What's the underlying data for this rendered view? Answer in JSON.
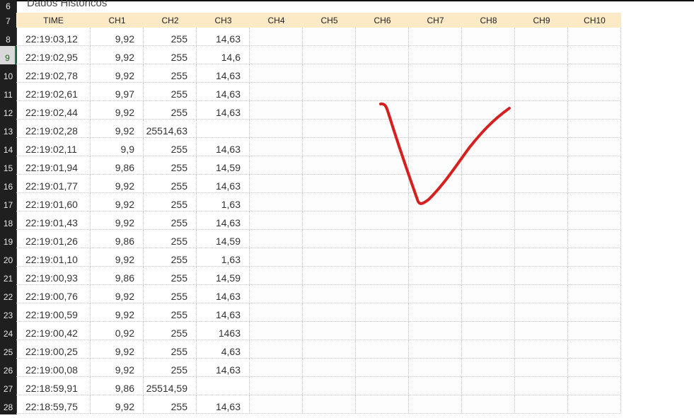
{
  "sheet": {
    "title": "Dados Históricos",
    "title_row": "6",
    "header_row": "7",
    "columns": [
      "TIME",
      "CH1",
      "CH2",
      "CH3",
      "CH4",
      "CH5",
      "CH6",
      "CH7",
      "CH8",
      "CH9",
      "CH10"
    ],
    "rows": [
      {
        "num": "8",
        "cells": [
          "22:19:03,12",
          "9,92",
          "255",
          "14,63"
        ]
      },
      {
        "num": "9",
        "cells": [
          "22:19:02,95",
          "9,92",
          "255",
          "14,6"
        ],
        "selected": true
      },
      {
        "num": "10",
        "cells": [
          "22:19:02,78",
          "9,92",
          "255",
          "14,63"
        ]
      },
      {
        "num": "11",
        "cells": [
          "22:19:02,61",
          "9,97",
          "255",
          "14,63"
        ]
      },
      {
        "num": "12",
        "cells": [
          "22:19:02,44",
          "9,92",
          "255",
          "14,63"
        ]
      },
      {
        "num": "13",
        "cells": [
          "22:19:02,28",
          "9,92",
          "25514,63",
          ""
        ]
      },
      {
        "num": "14",
        "cells": [
          "22:19:02,11",
          "9,9",
          "255",
          "14,63"
        ]
      },
      {
        "num": "15",
        "cells": [
          "22:19:01,94",
          "9,86",
          "255",
          "14,59"
        ]
      },
      {
        "num": "16",
        "cells": [
          "22:19:01,77",
          "9,92",
          "255",
          "14,63"
        ]
      },
      {
        "num": "17",
        "cells": [
          "22:19:01,60",
          "9,92",
          "255",
          "1,63"
        ]
      },
      {
        "num": "18",
        "cells": [
          "22:19:01,43",
          "9,92",
          "255",
          "14,63"
        ]
      },
      {
        "num": "19",
        "cells": [
          "22:19:01,26",
          "9,86",
          "255",
          "14,59"
        ]
      },
      {
        "num": "20",
        "cells": [
          "22:19:01,10",
          "9,92",
          "255",
          "1,63"
        ]
      },
      {
        "num": "21",
        "cells": [
          "22:19:00,93",
          "9,86",
          "255",
          "14,59"
        ]
      },
      {
        "num": "22",
        "cells": [
          "22:19:00,76",
          "9,92",
          "255",
          "14,63"
        ]
      },
      {
        "num": "23",
        "cells": [
          "22:19:00,59",
          "9,92",
          "255",
          "14,63"
        ]
      },
      {
        "num": "24",
        "cells": [
          "22:19:00,42",
          "0,92",
          "255",
          "1463"
        ]
      },
      {
        "num": "25",
        "cells": [
          "22:19:00,25",
          "9,92",
          "255",
          "4,63"
        ]
      },
      {
        "num": "26",
        "cells": [
          "22:19:00,08",
          "9,92",
          "255",
          "14,63"
        ]
      },
      {
        "num": "27",
        "cells": [
          "22:18:59,91",
          "9,86",
          "25514,59",
          ""
        ]
      },
      {
        "num": "28",
        "cells": [
          "22:18:59,75",
          "9,92",
          "255",
          "14,63"
        ]
      }
    ]
  },
  "annotation": {
    "icon": "checkmark-icon",
    "color": "#d62020"
  },
  "colors": {
    "header_bg": "#fce9c5",
    "row_header_bg": "#1f1f1f",
    "selected_row_header": "#d9d9d9"
  }
}
